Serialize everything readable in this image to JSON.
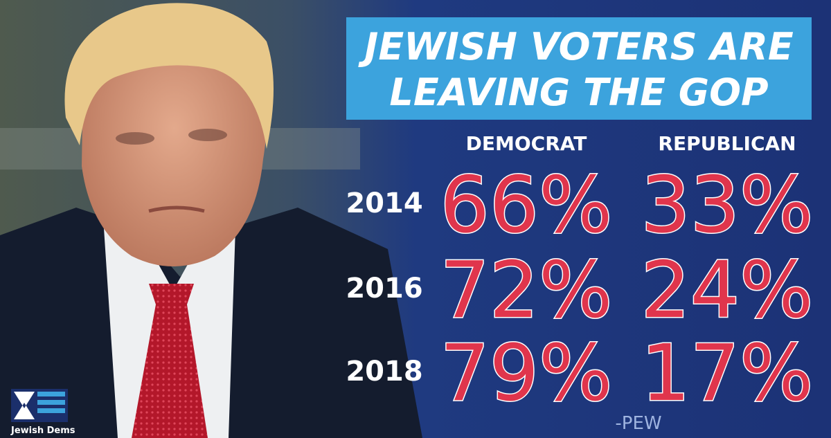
{
  "header": {
    "title_lines": [
      "JEWISH VOTERS ARE",
      "LEAVING THE GOP"
    ]
  },
  "table": {
    "columns": [
      "DEMOCRAT",
      "REPUBLICAN"
    ],
    "rows": [
      [
        "2014",
        "66%",
        "33%"
      ],
      [
        "2016",
        "72%",
        "24%"
      ],
      [
        "2018",
        "79%",
        "17%"
      ]
    ]
  },
  "source": "-PEW",
  "logo": {
    "text": "Jewish Dems"
  }
}
